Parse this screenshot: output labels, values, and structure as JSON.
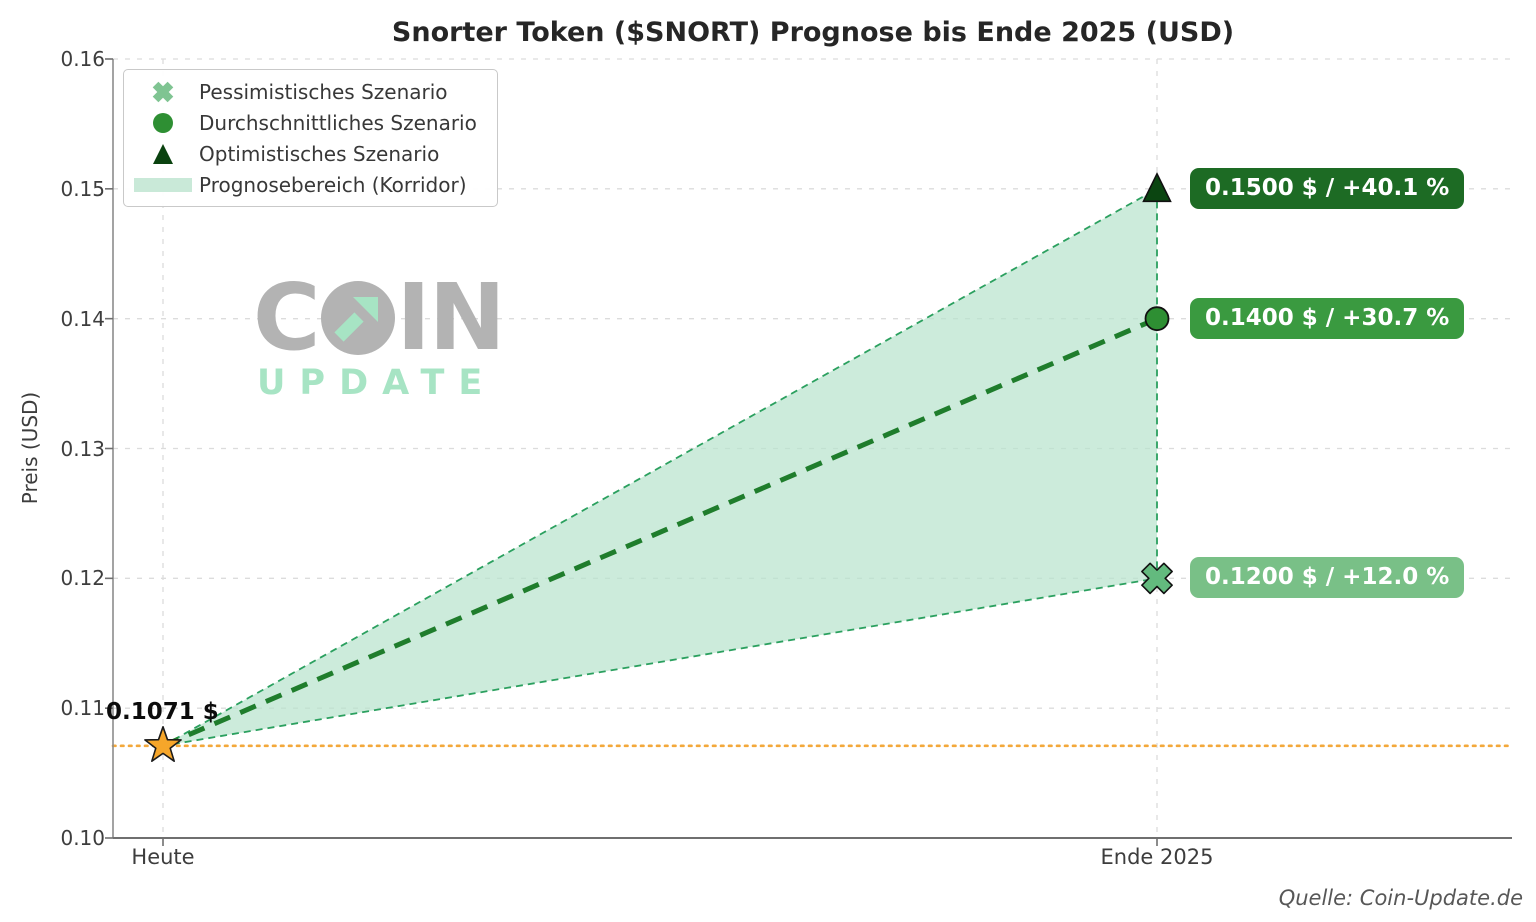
{
  "page": {
    "title": "Snorter Token ($SNORT) Prognose bis Ende 2025 (USD)",
    "source": "Quelle: Coin-Update.de"
  },
  "watermark": {
    "top_left": "C",
    "top_right": "IN",
    "bottom": "UPDATE",
    "gray": "#b3b3b3",
    "mint": "#a7e4c4"
  },
  "legend": {
    "items": [
      {
        "label": "Pessimistisches Szenario",
        "marker": "cross",
        "color": "#7fc492"
      },
      {
        "label": "Durchschnittliches Szenario",
        "marker": "circle",
        "color": "#2e8f33"
      },
      {
        "label": "Optimistisches Szenario",
        "marker": "triangle",
        "color": "#0a420f"
      },
      {
        "label": "Prognosebereich (Korridor)",
        "marker": "band",
        "color": "#c9e9d8"
      }
    ]
  },
  "axes": {
    "ylabel": "Preis (USD)",
    "y_tick_labels": [
      "0.10",
      "0.11",
      "0.12",
      "0.13",
      "0.14",
      "0.15",
      "0.16"
    ],
    "x_tick_labels": [
      "Heute",
      "Ende 2025"
    ]
  },
  "chart_data": {
    "type": "line",
    "title": "Snorter Token ($SNORT) Prognose bis Ende 2025 (USD)",
    "xlabel": "",
    "ylabel": "Preis (USD)",
    "x_categories": [
      "Heute",
      "Ende 2025"
    ],
    "ylim": [
      0.1,
      0.16
    ],
    "y_ticks": [
      0.1,
      0.11,
      0.12,
      0.13,
      0.14,
      0.15,
      0.16
    ],
    "grid": true,
    "legend_position": "upper left",
    "start_point": {
      "x": "Heute",
      "value": 0.1071,
      "label": "0.1071 $",
      "marker": "star",
      "color": "#f6a62a",
      "edge": "#1c1c1c"
    },
    "series": [
      {
        "name": "Pessimistisches Szenario",
        "values": [
          0.1071,
          0.12
        ],
        "marker": "cross",
        "color": "#63ba7e",
        "end_text": "0.1200 $ / +12.0 %"
      },
      {
        "name": "Durchschnittliches Szenario",
        "values": [
          0.1071,
          0.14
        ],
        "marker": "circle",
        "color": "#2e8f33",
        "line_color": "#1f7d2c",
        "line_style": "dashed-thick",
        "end_text": "0.1400 $ / +30.7 %"
      },
      {
        "name": "Optimistisches Szenario",
        "values": [
          0.1071,
          0.15
        ],
        "marker": "triangle",
        "color": "#0b4511",
        "end_text": "0.1500 $ / +40.1 %"
      }
    ],
    "corridor": {
      "between": [
        "Pessimistisches Szenario",
        "Optimistisches Szenario"
      ],
      "fill": "#b9e3cd",
      "edge": "#2ba05f"
    },
    "baseline": {
      "value": 0.1071,
      "style": "dotted",
      "color": "#f3a83b"
    }
  },
  "annotations": {
    "start_label": "0.1071 $",
    "badges": [
      {
        "text": "0.1500 $ / +40.1 %",
        "bg": "#1d6b24",
        "value": 0.15
      },
      {
        "text": "0.1400 $ / +30.7 %",
        "bg": "#3a9a40",
        "value": 0.14
      },
      {
        "text": "0.1200 $ / +12.0 %",
        "bg": "#79c087",
        "value": 0.12
      }
    ]
  }
}
